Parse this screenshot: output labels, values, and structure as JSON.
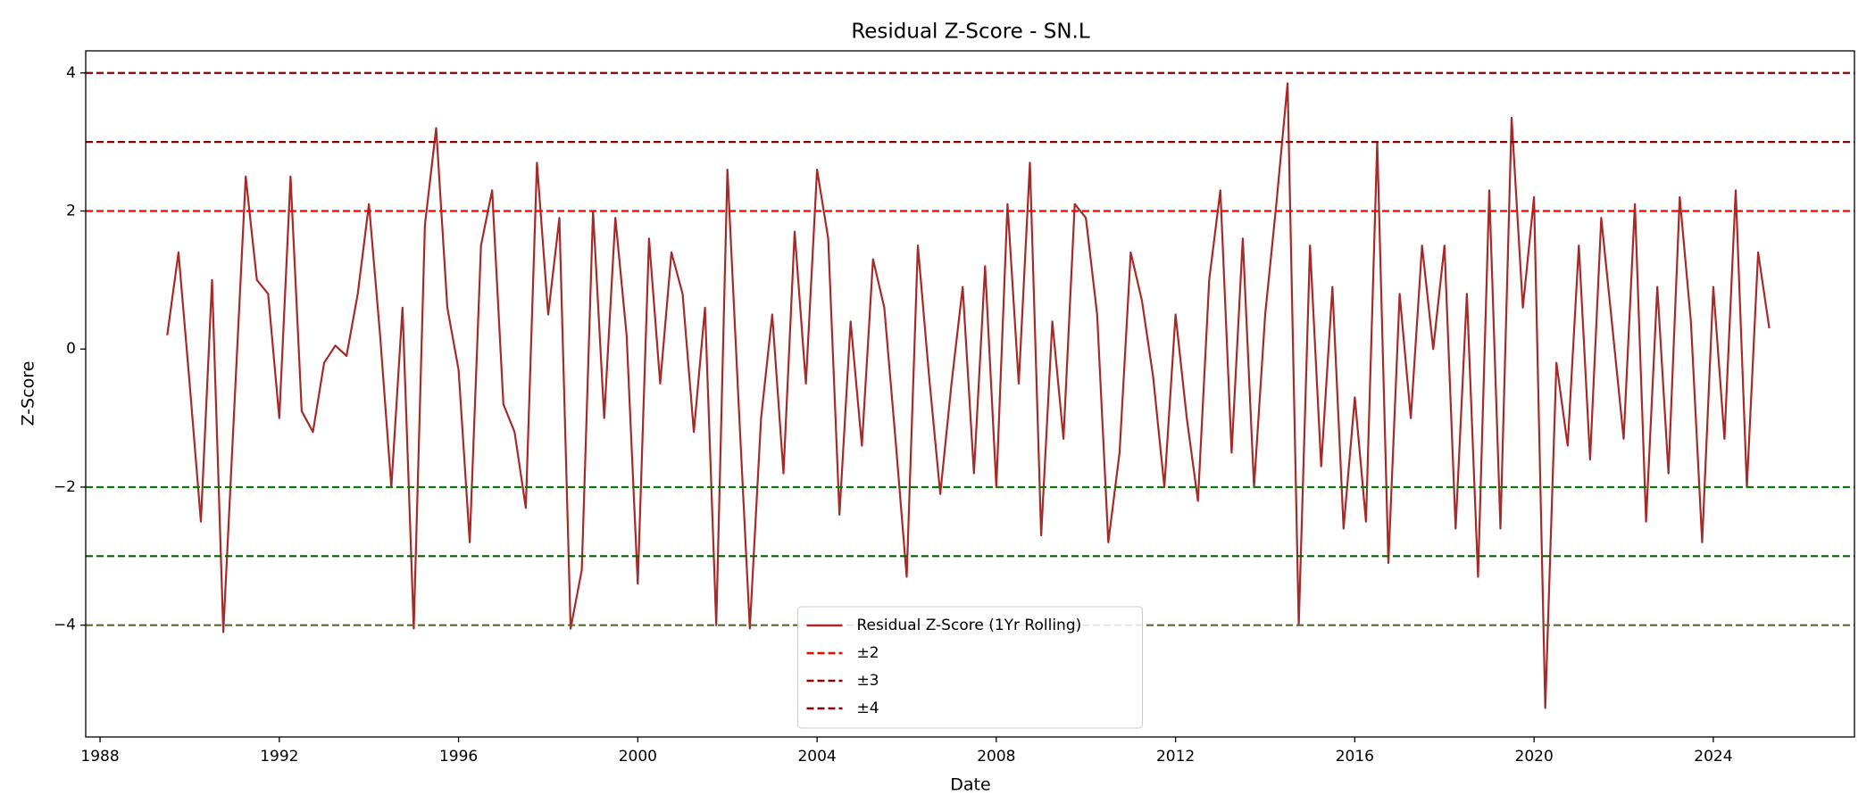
{
  "chart_data": {
    "type": "line",
    "title": "Residual Z-Score - SN.L",
    "xlabel": "Date",
    "ylabel": "Z-Score",
    "x": [
      1989.5,
      1989.75,
      1990,
      1990.25,
      1990.5,
      1990.75,
      1991,
      1991.25,
      1991.5,
      1991.75,
      1992,
      1992.25,
      1992.5,
      1992.75,
      1993,
      1993.25,
      1993.5,
      1993.75,
      1994,
      1994.25,
      1994.5,
      1994.75,
      1995,
      1995.25,
      1995.5,
      1995.75,
      1996,
      1996.25,
      1996.5,
      1996.75,
      1997,
      1997.25,
      1997.5,
      1997.75,
      1998,
      1998.25,
      1998.5,
      1998.75,
      1999,
      1999.25,
      1999.5,
      1999.75,
      2000,
      2000.25,
      2000.5,
      2000.75,
      2001,
      2001.25,
      2001.5,
      2001.75,
      2002,
      2002.25,
      2002.5,
      2002.75,
      2003,
      2003.25,
      2003.5,
      2003.75,
      2004,
      2004.25,
      2004.5,
      2004.75,
      2005,
      2005.25,
      2005.5,
      2005.75,
      2006,
      2006.25,
      2006.5,
      2006.75,
      2007,
      2007.25,
      2007.5,
      2007.75,
      2008,
      2008.25,
      2008.5,
      2008.75,
      2009,
      2009.25,
      2009.5,
      2009.75,
      2010,
      2010.25,
      2010.5,
      2010.75,
      2011,
      2011.25,
      2011.5,
      2011.75,
      2012,
      2012.25,
      2012.5,
      2012.75,
      2013,
      2013.25,
      2013.5,
      2013.75,
      2014,
      2014.25,
      2014.5,
      2014.75,
      2015,
      2015.25,
      2015.5,
      2015.75,
      2016,
      2016.25,
      2016.5,
      2016.75,
      2017,
      2017.25,
      2017.5,
      2017.75,
      2018,
      2018.25,
      2018.5,
      2018.75,
      2019,
      2019.25,
      2019.5,
      2019.75,
      2020,
      2020.25,
      2020.5,
      2020.75,
      2021,
      2021.25,
      2021.5,
      2021.75,
      2022,
      2022.25,
      2022.5,
      2022.75,
      2023,
      2023.25,
      2023.5,
      2023.75,
      2024,
      2024.25,
      2024.5,
      2024.75,
      2025,
      2025.25
    ],
    "series": [
      {
        "name": "Residual Z-Score (1Yr Rolling)",
        "color": "#a52a2a",
        "values": [
          0.2,
          1.4,
          -0.5,
          -2.5,
          1.0,
          -4.1,
          -0.8,
          2.5,
          1.0,
          0.8,
          -1.0,
          2.5,
          -0.9,
          -1.2,
          -0.2,
          0.05,
          -0.1,
          0.8,
          2.1,
          0.2,
          -2.0,
          0.6,
          -4.05,
          1.8,
          3.2,
          0.6,
          -0.3,
          -2.8,
          1.5,
          2.3,
          -0.8,
          -1.2,
          -2.3,
          2.7,
          0.5,
          1.9,
          -4.05,
          -3.2,
          2.0,
          -1.0,
          1.9,
          0.2,
          -3.4,
          1.6,
          -0.5,
          1.4,
          0.8,
          -1.2,
          0.6,
          -4.0,
          2.6,
          -0.8,
          -4.05,
          -1.0,
          0.5,
          -1.8,
          1.7,
          -0.5,
          2.6,
          1.6,
          -2.4,
          0.4,
          -1.4,
          1.3,
          0.6,
          -1.3,
          -3.3,
          1.5,
          -0.4,
          -2.1,
          -0.5,
          0.9,
          -1.8,
          1.2,
          -2.0,
          2.1,
          -0.5,
          2.7,
          -2.7,
          0.4,
          -1.3,
          2.1,
          1.9,
          0.5,
          -2.8,
          -1.5,
          1.4,
          0.7,
          -0.4,
          -2.0,
          0.5,
          -1.0,
          -2.2,
          1.0,
          2.3,
          -1.5,
          1.6,
          -2.0,
          0.5,
          2.1,
          3.85,
          -4.0,
          1.5,
          -1.7,
          0.9,
          -2.6,
          -0.7,
          -2.5,
          3.0,
          -3.1,
          0.8,
          -1.0,
          1.5,
          0.0,
          1.5,
          -2.6,
          0.8,
          -3.3,
          2.3,
          -2.6,
          3.35,
          0.6,
          2.2,
          -5.2,
          -0.2,
          -1.4,
          1.5,
          -1.6,
          1.9,
          0.3,
          -1.3,
          2.1,
          -2.5,
          0.9,
          -1.8,
          2.2,
          0.4,
          -2.8,
          0.9,
          -1.3,
          2.3,
          -2.0,
          1.4,
          0.3
        ]
      }
    ],
    "reference_lines": [
      {
        "name": "±2",
        "values": [
          2,
          -2
        ],
        "colors": [
          "#ff0000",
          "#008000"
        ]
      },
      {
        "name": "±3",
        "values": [
          3,
          -3
        ],
        "colors": [
          "#8b0000",
          "#006400"
        ]
      },
      {
        "name": "±4",
        "values": [
          4,
          -4
        ],
        "colors": [
          "#8b0000",
          "#556b2f"
        ]
      }
    ],
    "xlim": [
      1987.68,
      2027.15
    ],
    "xticks": [
      1988,
      1992,
      1996,
      2000,
      2004,
      2008,
      2012,
      2016,
      2020,
      2024
    ],
    "ylim": [
      -5.62,
      4.32
    ],
    "yticks": [
      {
        "value": -4,
        "label": "−4"
      },
      {
        "value": -2,
        "label": "−2"
      },
      0,
      2,
      4
    ],
    "legend": "lower center"
  }
}
